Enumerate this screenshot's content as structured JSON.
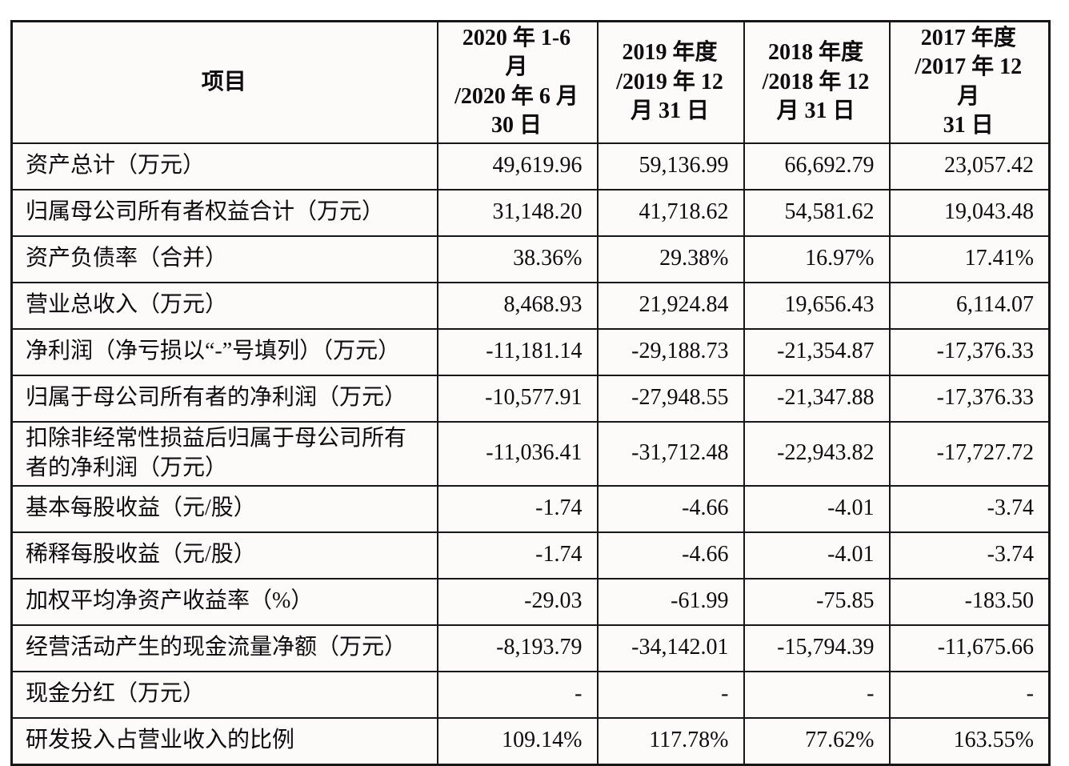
{
  "table": {
    "header": {
      "item_label": "项目",
      "periods": [
        {
          "lines": [
            "2020 年 1-6 月",
            "/2020 年 6 月",
            "30 日"
          ]
        },
        {
          "lines": [
            "2019 年度",
            "/2019 年 12",
            "月 31 日"
          ]
        },
        {
          "lines": [
            "2018 年度",
            "/2018 年 12",
            "月 31 日"
          ]
        },
        {
          "lines": [
            "2017 年度",
            "/2017 年 12 月",
            "31 日"
          ]
        }
      ]
    },
    "rows": [
      {
        "label": "资产总计（万元）",
        "values": [
          "49,619.96",
          "59,136.99",
          "66,692.79",
          "23,057.42"
        ]
      },
      {
        "label": "归属母公司所有者权益合计（万元）",
        "values": [
          "31,148.20",
          "41,718.62",
          "54,581.62",
          "19,043.48"
        ]
      },
      {
        "label": "资产负债率（合并）",
        "values": [
          "38.36%",
          "29.38%",
          "16.97%",
          "17.41%"
        ]
      },
      {
        "label": "营业总收入（万元）",
        "values": [
          "8,468.93",
          "21,924.84",
          "19,656.43",
          "6,114.07"
        ]
      },
      {
        "label": "净利润（净亏损以“-”号填列）（万元）",
        "values": [
          "-11,181.14",
          "-29,188.73",
          "-21,354.87",
          "-17,376.33"
        ]
      },
      {
        "label": "归属于母公司所有者的净利润（万元）",
        "values": [
          "-10,577.91",
          "-27,948.55",
          "-21,347.88",
          "-17,376.33"
        ]
      },
      {
        "label": "扣除非经常性损益后归属于母公司所有者的净利润（万元）",
        "values": [
          "-11,036.41",
          "-31,712.48",
          "-22,943.82",
          "-17,727.72"
        ]
      },
      {
        "label": "基本每股收益（元/股）",
        "values": [
          "-1.74",
          "-4.66",
          "-4.01",
          "-3.74"
        ]
      },
      {
        "label": "稀释每股收益（元/股）",
        "values": [
          "-1.74",
          "-4.66",
          "-4.01",
          "-3.74"
        ]
      },
      {
        "label": "加权平均净资产收益率（%）",
        "values": [
          "-29.03",
          "-61.99",
          "-75.85",
          "-183.50"
        ]
      },
      {
        "label": "经营活动产生的现金流量净额（万元）",
        "values": [
          "-8,193.79",
          "-34,142.01",
          "-15,794.39",
          "-11,675.66"
        ]
      },
      {
        "label": "现金分红（万元）",
        "values": [
          "-",
          "-",
          "-",
          "-"
        ]
      },
      {
        "label": "研发投入占营业收入的比例",
        "values": [
          "109.14%",
          "117.78%",
          "77.62%",
          "163.55%"
        ]
      }
    ],
    "colors": {
      "border": "#171717",
      "cell_background": "#fcfbfa",
      "text": "#0d0d0d"
    }
  }
}
